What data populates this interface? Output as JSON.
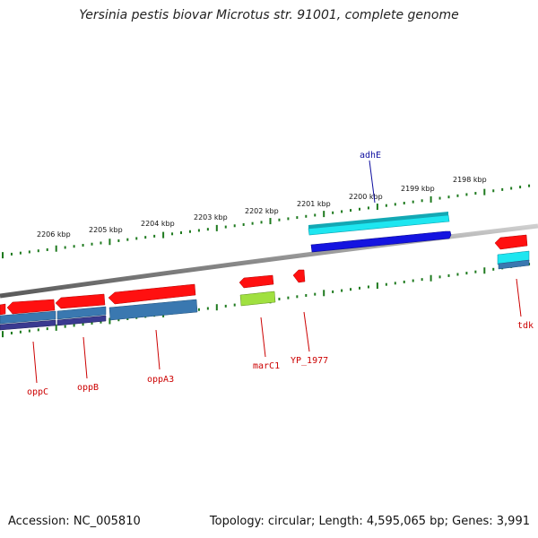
{
  "title": "Yersinia pestis biovar Microtus str. 91001, complete genome",
  "footer": {
    "accession": "Accession: NC_005810",
    "stats": "Topology: circular; Length: 4,595,065 bp; Genes: 3,991"
  },
  "colors": {
    "backbone": "#8c8c8c",
    "ticks": "#1e7a1e",
    "cds": "#ff1010",
    "cyan_feature": "#1ee6f0",
    "blue_feature": "#1010e0",
    "steel_feature": "#3a78b0",
    "navy_feature": "#3a3a90",
    "lime_feature": "#a0e040",
    "label_red": "#cc0000",
    "label_blue": "#1010a0"
  },
  "scale_labels": [
    "2206 kbp",
    "2205 kbp",
    "2204 kbp",
    "2203 kbp",
    "2202 kbp",
    "2201 kbp",
    "2200 kbp",
    "2199 kbp",
    "2198 kbp"
  ],
  "genes": [
    "adhE",
    "oppC",
    "oppB",
    "oppA3",
    "marC1",
    "YP_1977",
    "tdk"
  ]
}
